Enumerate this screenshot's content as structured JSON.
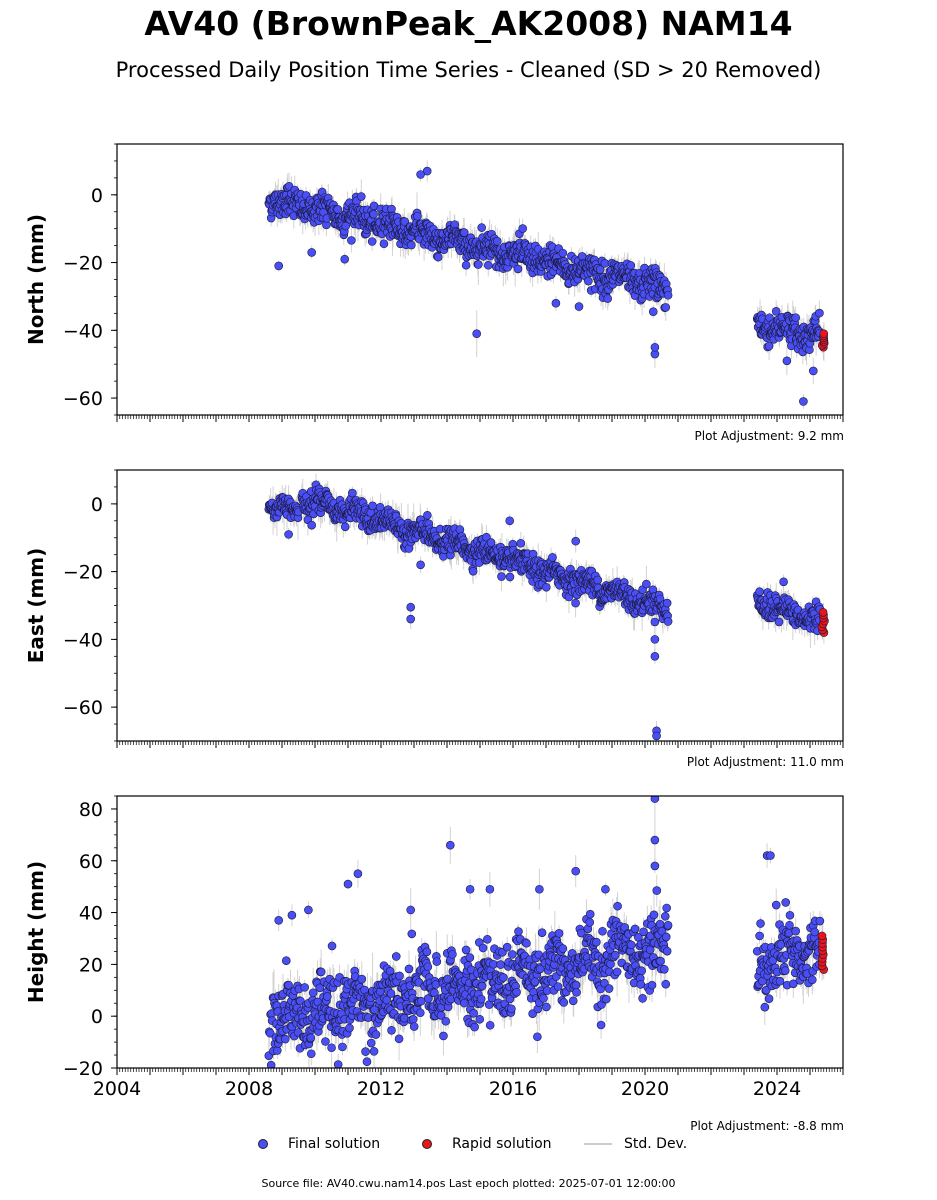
{
  "title": "AV40 (BrownPeak_AK2008) NAM14",
  "subtitle": "Processed Daily Position Time Series - Cleaned (SD > 20 Removed)",
  "legend": {
    "final": "Final solution",
    "rapid": "Rapid solution",
    "std": "Std. Dev."
  },
  "footer": "Source file: AV40.cwu.nam14.pos  Last epoch plotted: 2025-07-01 12:00:00",
  "colors": {
    "final": "#4a4ef5",
    "rapid": "#e8151b",
    "std": "#c8c8c8",
    "edge": "#1a1a3a"
  },
  "chart_data": [
    {
      "type": "scatter",
      "ylabel": "North (mm)",
      "adjustment": "Plot Adjustment: 9.2 mm",
      "xlim": [
        2004,
        2026
      ],
      "ylim": [
        -65,
        15
      ],
      "yticks": [
        0,
        -20,
        -40,
        -60
      ],
      "yticklabels": [
        "0",
        "−20",
        "−40",
        "−60"
      ],
      "segments": [
        {
          "x0": 2008.6,
          "x1": 2020.7,
          "y0": -1,
          "y1": -28,
          "noise": 2.2
        },
        {
          "x0": 2023.4,
          "x1": 2025.3,
          "y0": -38,
          "y1": -42,
          "noise": 2.2
        }
      ],
      "outliers": [
        [
          2013.4,
          7
        ],
        [
          2013.2,
          6
        ],
        [
          2014.9,
          -41
        ],
        [
          2017.3,
          -32
        ],
        [
          2020.3,
          -47
        ],
        [
          2020.3,
          -45
        ],
        [
          2020.25,
          -34.5
        ],
        [
          2024.8,
          -61
        ],
        [
          2025.1,
          -52
        ],
        [
          2008.9,
          -21
        ],
        [
          2009.9,
          -17
        ],
        [
          2010.9,
          -19
        ],
        [
          2018.0,
          -33
        ],
        [
          2024.3,
          -49
        ]
      ],
      "rapid": {
        "x": 2025.4,
        "ymin": -45,
        "ymax": -41,
        "n": 8
      }
    },
    {
      "type": "scatter",
      "ylabel": "East (mm)",
      "adjustment": "Plot Adjustment: 11.0 mm",
      "xlim": [
        2004,
        2026
      ],
      "ylim": [
        -70,
        10
      ],
      "yticks": [
        0,
        -20,
        -40,
        -60
      ],
      "yticklabels": [
        "0",
        "−20",
        "−40",
        "−60"
      ],
      "segments": [
        {
          "x0": 2008.6,
          "x1": 2009.5,
          "y0": 0,
          "y1": -2,
          "noise": 1.6
        },
        {
          "x0": 2009.6,
          "x1": 2020.7,
          "y0": 2,
          "y1": -31,
          "noise": 1.8
        },
        {
          "x0": 2023.4,
          "x1": 2025.3,
          "y0": -29,
          "y1": -35,
          "noise": 1.8
        }
      ],
      "outliers": [
        [
          2009.2,
          -9
        ],
        [
          2012.9,
          -30.5
        ],
        [
          2012.9,
          -34
        ],
        [
          2013.2,
          -18
        ],
        [
          2020.3,
          -45
        ],
        [
          2020.3,
          -40
        ],
        [
          2020.35,
          -67
        ],
        [
          2020.35,
          -68.5
        ],
        [
          2017.9,
          -11
        ],
        [
          2024.2,
          -23
        ],
        [
          2015.9,
          -5
        ]
      ],
      "rapid": {
        "x": 2025.4,
        "ymin": -38,
        "ymax": -32,
        "n": 8
      }
    },
    {
      "type": "scatter",
      "ylabel": "Height (mm)",
      "adjustment": "Plot Adjustment: -8.8 mm",
      "xlim": [
        2004,
        2026
      ],
      "ylim": [
        -20,
        85
      ],
      "yticks": [
        80,
        60,
        40,
        20,
        0,
        -20
      ],
      "yticklabels": [
        "80",
        "60",
        "40",
        "20",
        "0",
        "−20"
      ],
      "xticks": [
        2004,
        2008,
        2012,
        2016,
        2020,
        2024
      ],
      "xticklabels": [
        "2004",
        "2008",
        "2012",
        "2016",
        "2020",
        "2024"
      ],
      "segments": [
        {
          "x0": 2008.6,
          "x1": 2020.7,
          "y0": -2,
          "y1": 27,
          "noise": 7.0
        },
        {
          "x0": 2023.4,
          "x1": 2025.3,
          "y0": 18,
          "y1": 26,
          "noise": 7.0
        }
      ],
      "outliers": [
        [
          2014.1,
          66
        ],
        [
          2020.3,
          84
        ],
        [
          2020.3,
          68
        ],
        [
          2020.3,
          58
        ],
        [
          2023.7,
          62
        ],
        [
          2023.8,
          62
        ],
        [
          2011.0,
          51
        ],
        [
          2011.3,
          55
        ],
        [
          2017.9,
          56
        ],
        [
          2014.7,
          49
        ],
        [
          2015.3,
          49
        ],
        [
          2009.8,
          41
        ],
        [
          2008.9,
          37
        ],
        [
          2009.3,
          39
        ],
        [
          2016.8,
          49
        ],
        [
          2018.8,
          49
        ],
        [
          2012.9,
          41
        ]
      ],
      "rapid": {
        "x": 2025.4,
        "ymin": 18,
        "ymax": 31,
        "n": 10
      }
    }
  ]
}
